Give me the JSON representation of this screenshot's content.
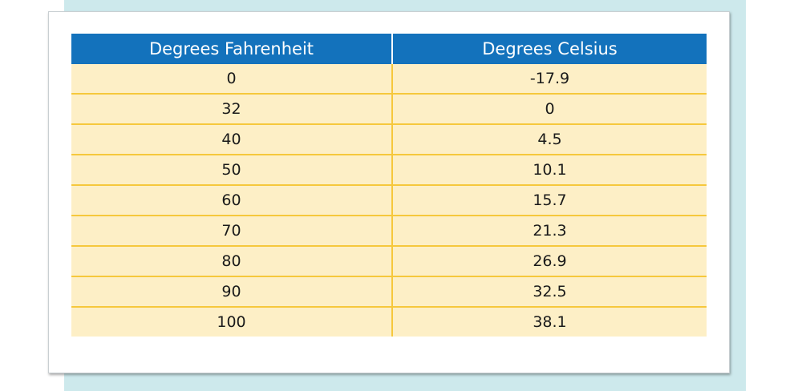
{
  "colors": {
    "background_panel": "#cde9ec",
    "header_fill": "#1372bc",
    "row_fill": "#fdefc6",
    "row_divider": "#f6c83c"
  },
  "table": {
    "headers": [
      "Degrees Fahrenheit",
      "Degrees Celsius"
    ],
    "rows": [
      [
        "0",
        "-17.9"
      ],
      [
        "32",
        "0"
      ],
      [
        "40",
        "4.5"
      ],
      [
        "50",
        "10.1"
      ],
      [
        "60",
        "15.7"
      ],
      [
        "70",
        "21.3"
      ],
      [
        "80",
        "26.9"
      ],
      [
        "90",
        "32.5"
      ],
      [
        "100",
        "38.1"
      ]
    ]
  }
}
